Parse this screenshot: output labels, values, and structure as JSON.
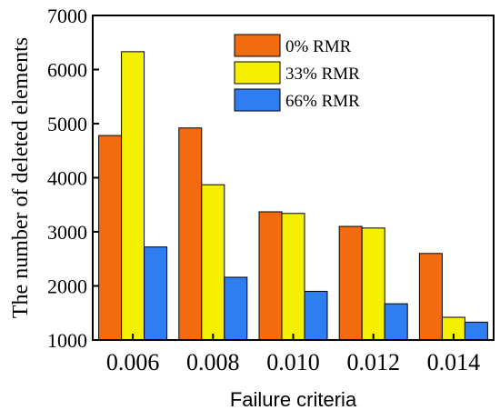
{
  "chart_data": {
    "type": "bar",
    "categories": [
      "0.006",
      "0.008",
      "0.010",
      "0.012",
      "0.014"
    ],
    "series": [
      {
        "name": "0% RMR",
        "color": "#f26b0f",
        "values": [
          4780,
          4920,
          3370,
          3100,
          2600
        ]
      },
      {
        "name": "33% RMR",
        "color": "#f5ef00",
        "values": [
          6330,
          3870,
          3340,
          3070,
          1420
        ]
      },
      {
        "name": "66% RMR",
        "color": "#2f7df0",
        "values": [
          2720,
          2160,
          1900,
          1670,
          1330
        ]
      }
    ],
    "xlabel": "Failure criteria",
    "ylabel": "The number of deleted elements",
    "ylim": [
      1000,
      7000
    ],
    "yticks": [
      1000,
      2000,
      3000,
      4000,
      5000,
      6000,
      7000
    ],
    "legend_position": "top-right",
    "grid": false
  }
}
